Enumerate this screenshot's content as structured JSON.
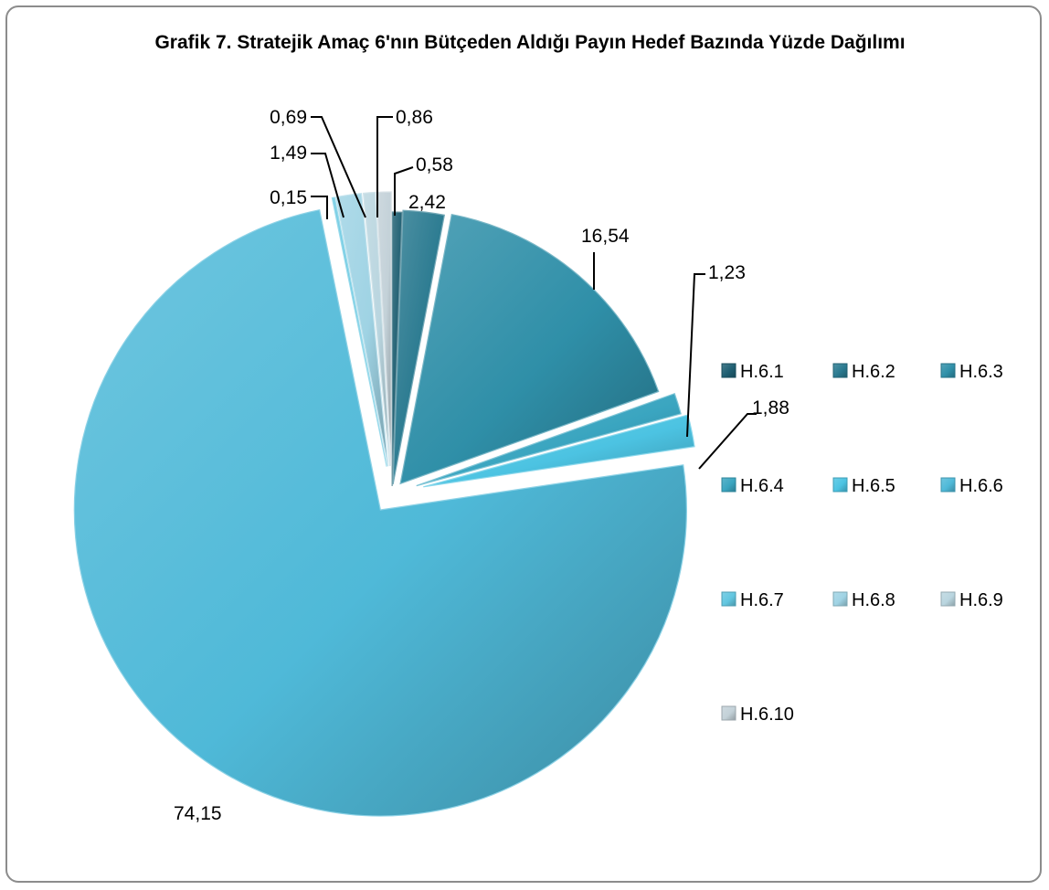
{
  "chart_data": {
    "type": "pie",
    "title": "Grafik 7. Stratejik Amaç 6'nın Bütçeden Aldığı Payın Hedef Bazında Yüzde Dağılımı",
    "categories": [
      "H.6.1",
      "H.6.2",
      "H.6.3",
      "H.6.4",
      "H.6.5",
      "H.6.6",
      "H.6.7",
      "H.6.8",
      "H.6.9",
      "H.6.10"
    ],
    "values": [
      0.58,
      2.42,
      16.54,
      1.23,
      1.88,
      74.15,
      0.15,
      1.49,
      0.69,
      0.86
    ],
    "value_labels": [
      "0,58",
      "2,42",
      "16,54",
      "1,23",
      "1,88",
      "74,15",
      "0,15",
      "1,49",
      "0,69",
      "0,86"
    ],
    "colors": [
      "#1f5f72",
      "#2a7a90",
      "#2f8fa8",
      "#3aa5c0",
      "#4cc3e2",
      "#4fb9d8",
      "#62c6e0",
      "#9fd3e4",
      "#b9d5df",
      "#c3d1d8"
    ],
    "legend_position": "right",
    "exploded": true
  }
}
